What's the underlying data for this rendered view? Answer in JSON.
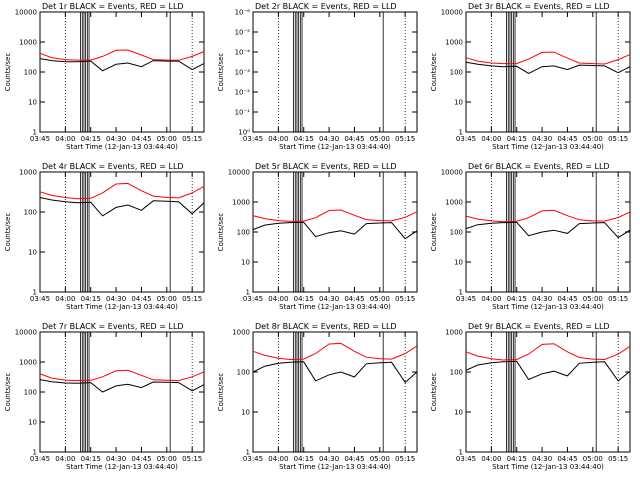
{
  "colors": {
    "events": "#000000",
    "lld": "#ff0000",
    "background": "#ffffff",
    "frame": "#000000"
  },
  "chart_data": [
    {
      "type": "line",
      "title": "Det 1r BLACK = Events, RED = LLD",
      "xlabel": "Start Time (12-Jan-13 03:44:40)",
      "ylabel": "Counts/sec",
      "xlim": [
        "03:45",
        "05:22"
      ],
      "ylim": [
        1,
        10000
      ],
      "yscale": "log",
      "grid": false,
      "legend": "none",
      "x_ticks": [
        "03:45",
        "04:00",
        "04:15",
        "04:30",
        "04:45",
        "05:00",
        "05:15"
      ],
      "y_ticks": [
        "1",
        "10",
        "100",
        "1000",
        "10000"
      ],
      "dotted_lines": [
        "04:00",
        "05:15"
      ],
      "flag_lines": [
        "04:09",
        "04:10",
        "04:11",
        "04:12",
        "04:13",
        "04:14",
        "05:02"
      ],
      "series": [
        {
          "color": "#ff0000",
          "x": [
            "03:45",
            "03:52",
            "04:00",
            "04:07",
            "04:15",
            "04:22",
            "04:30",
            "04:37",
            "04:45",
            "04:52",
            "05:00",
            "05:07",
            "05:15",
            "05:22"
          ],
          "values": [
            420,
            300,
            260,
            250,
            250,
            330,
            530,
            540,
            370,
            260,
            250,
            245,
            330,
            480
          ]
        },
        {
          "color": "#000000",
          "x": [
            "03:45",
            "03:52",
            "04:00",
            "04:07",
            "04:15",
            "04:22",
            "04:30",
            "04:37",
            "04:45",
            "04:52",
            "05:00",
            "05:07",
            "05:15",
            "05:22"
          ],
          "values": [
            280,
            240,
            220,
            220,
            230,
            110,
            180,
            200,
            150,
            240,
            230,
            230,
            120,
            190
          ]
        }
      ]
    },
    {
      "type": "line",
      "title": "Det 2r BLACK = Events, RED = LLD",
      "xlabel": "Start Time (12-Jan-13 03:44:40)",
      "ylabel": "Counts/sec",
      "xlim": [
        "03:45",
        "05:22"
      ],
      "ylim": [
        1,
        1e-06
      ],
      "yscale": "log",
      "grid": false,
      "legend": "none",
      "x_ticks": [
        "03:45",
        "04:00",
        "04:15",
        "04:30",
        "04:45",
        "05:00",
        "05:15"
      ],
      "y_ticks": [
        "10⁰",
        "10⁻¹",
        "10⁻²",
        "10⁻³",
        "10⁻⁴",
        "10⁻⁵",
        "10⁻⁶"
      ],
      "dotted_lines": [
        "04:00",
        "05:15"
      ],
      "flag_lines": [
        "04:09",
        "04:10",
        "04:11",
        "04:12",
        "04:13",
        "04:14",
        "05:02"
      ],
      "series": []
    },
    {
      "type": "line",
      "title": "Det 3r BLACK = Events, RED = LLD",
      "xlabel": "Start Time (12-Jan-13 03:44:40)",
      "ylabel": "Counts/sec",
      "xlim": [
        "03:45",
        "05:22"
      ],
      "ylim": [
        1,
        10000
      ],
      "yscale": "log",
      "grid": false,
      "legend": "none",
      "x_ticks": [
        "03:45",
        "04:00",
        "04:15",
        "04:30",
        "04:45",
        "05:00",
        "05:15"
      ],
      "y_ticks": [
        "1",
        "10",
        "100",
        "1000",
        "10000"
      ],
      "dotted_lines": [
        "04:00",
        "05:15"
      ],
      "flag_lines": [
        "04:09",
        "04:10",
        "04:11",
        "04:12",
        "04:13",
        "04:14",
        "05:02"
      ],
      "series": [
        {
          "color": "#ff0000",
          "x": [
            "03:45",
            "03:52",
            "04:00",
            "04:07",
            "04:15",
            "04:22",
            "04:30",
            "04:37",
            "04:45",
            "04:52",
            "05:00",
            "05:07",
            "05:15",
            "05:22"
          ],
          "values": [
            300,
            230,
            200,
            190,
            190,
            270,
            450,
            460,
            290,
            200,
            190,
            185,
            260,
            380
          ]
        },
        {
          "color": "#000000",
          "x": [
            "03:45",
            "03:52",
            "04:00",
            "04:07",
            "04:15",
            "04:22",
            "04:30",
            "04:37",
            "04:45",
            "04:52",
            "05:00",
            "05:07",
            "05:15",
            "05:22"
          ],
          "values": [
            210,
            180,
            160,
            150,
            155,
            90,
            150,
            160,
            120,
            170,
            165,
            160,
            95,
            150
          ]
        }
      ]
    },
    {
      "type": "line",
      "title": "Det 4r BLACK = Events, RED = LLD",
      "xlabel": "Start Time (12-Jan-13 03:44:40)",
      "ylabel": "Counts/sec",
      "xlim": [
        "03:45",
        "05:22"
      ],
      "ylim": [
        1,
        1000
      ],
      "yscale": "log",
      "grid": false,
      "legend": "none",
      "x_ticks": [
        "03:45",
        "04:00",
        "04:15",
        "04:30",
        "04:45",
        "05:00",
        "05:15"
      ],
      "y_ticks": [
        "1",
        "10",
        "100",
        "1000"
      ],
      "dotted_lines": [
        "04:00",
        "05:15"
      ],
      "flag_lines": [
        "04:09",
        "04:10",
        "04:11",
        "04:12",
        "04:13",
        "04:14",
        "05:02"
      ],
      "series": [
        {
          "color": "#ff0000",
          "x": [
            "03:45",
            "03:52",
            "04:00",
            "04:07",
            "04:15",
            "04:22",
            "04:30",
            "04:37",
            "04:45",
            "04:52",
            "05:00",
            "05:07",
            "05:15",
            "05:22"
          ],
          "values": [
            320,
            260,
            230,
            215,
            220,
            300,
            500,
            520,
            340,
            250,
            230,
            225,
            300,
            440
          ]
        },
        {
          "color": "#000000",
          "x": [
            "03:45",
            "03:52",
            "04:00",
            "04:07",
            "04:15",
            "04:22",
            "04:30",
            "04:37",
            "04:45",
            "04:52",
            "05:00",
            "05:07",
            "05:15",
            "05:22"
          ],
          "values": [
            230,
            200,
            180,
            170,
            175,
            80,
            130,
            150,
            110,
            190,
            185,
            180,
            90,
            170
          ]
        }
      ]
    },
    {
      "type": "line",
      "title": "Det 5r BLACK = Events, RED = LLD",
      "xlabel": "Start Time (12-Jan-13 03:44:40)",
      "ylabel": "Counts/sec",
      "xlim": [
        "03:45",
        "05:22"
      ],
      "ylim": [
        1,
        10000
      ],
      "yscale": "log",
      "grid": false,
      "legend": "none",
      "x_ticks": [
        "03:45",
        "04:00",
        "04:15",
        "04:30",
        "04:45",
        "05:00",
        "05:15"
      ],
      "y_ticks": [
        "1",
        "10",
        "100",
        "1000",
        "10000"
      ],
      "dotted_lines": [
        "04:00",
        "05:15"
      ],
      "flag_lines": [
        "04:09",
        "04:10",
        "04:11",
        "04:12",
        "04:13",
        "04:14",
        "05:02"
      ],
      "series": [
        {
          "color": "#ff0000",
          "x": [
            "03:45",
            "03:52",
            "04:00",
            "04:07",
            "04:15",
            "04:22",
            "04:30",
            "04:37",
            "04:45",
            "04:52",
            "05:00",
            "05:07",
            "05:15",
            "05:22"
          ],
          "values": [
            350,
            280,
            240,
            225,
            230,
            300,
            520,
            540,
            360,
            260,
            240,
            235,
            310,
            470
          ]
        },
        {
          "color": "#000000",
          "x": [
            "03:45",
            "03:52",
            "04:00",
            "04:07",
            "04:15",
            "04:22",
            "04:30",
            "04:37",
            "04:45",
            "04:52",
            "05:00",
            "05:07",
            "05:15",
            "05:22"
          ],
          "values": [
            120,
            170,
            195,
            205,
            210,
            70,
            95,
            110,
            85,
            190,
            200,
            205,
            60,
            110
          ]
        }
      ]
    },
    {
      "type": "line",
      "title": "Det 6r BLACK = Events, RED = LLD",
      "xlabel": "Start Time (12-Jan-13 03:44:40)",
      "ylabel": "Counts/sec",
      "xlim": [
        "03:45",
        "05:22"
      ],
      "ylim": [
        1,
        10000
      ],
      "yscale": "log",
      "grid": false,
      "legend": "none",
      "x_ticks": [
        "03:45",
        "04:00",
        "04:15",
        "04:30",
        "04:45",
        "05:00",
        "05:15"
      ],
      "y_ticks": [
        "1",
        "10",
        "100",
        "1000",
        "10000"
      ],
      "dotted_lines": [
        "04:00",
        "05:15"
      ],
      "flag_lines": [
        "04:09",
        "04:10",
        "04:11",
        "04:12",
        "04:13",
        "04:14",
        "05:02"
      ],
      "series": [
        {
          "color": "#ff0000",
          "x": [
            "03:45",
            "03:52",
            "04:00",
            "04:07",
            "04:15",
            "04:22",
            "04:30",
            "04:37",
            "04:45",
            "04:52",
            "05:00",
            "05:07",
            "05:15",
            "05:22"
          ],
          "values": [
            340,
            270,
            235,
            220,
            225,
            300,
            510,
            530,
            350,
            255,
            235,
            230,
            305,
            460
          ]
        },
        {
          "color": "#000000",
          "x": [
            "03:45",
            "03:52",
            "04:00",
            "04:07",
            "04:15",
            "04:22",
            "04:30",
            "04:37",
            "04:45",
            "04:52",
            "05:00",
            "05:07",
            "05:15",
            "05:22"
          ],
          "values": [
            130,
            175,
            195,
            205,
            210,
            75,
            100,
            115,
            90,
            190,
            200,
            205,
            65,
            115
          ]
        }
      ]
    },
    {
      "type": "line",
      "title": "Det 7r BLACK = Events, RED = LLD",
      "xlabel": "Start Time (12-Jan-13 03:44:40)",
      "ylabel": "Counts/sec",
      "xlim": [
        "03:45",
        "05:22"
      ],
      "ylim": [
        1,
        10000
      ],
      "yscale": "log",
      "grid": false,
      "legend": "none",
      "x_ticks": [
        "03:45",
        "04:00",
        "04:15",
        "04:30",
        "04:45",
        "05:00",
        "05:15"
      ],
      "y_ticks": [
        "1",
        "10",
        "100",
        "1000",
        "10000"
      ],
      "dotted_lines": [
        "04:00",
        "05:15"
      ],
      "flag_lines": [
        "04:09",
        "04:10",
        "04:11",
        "04:12",
        "04:13",
        "04:14",
        "05:02"
      ],
      "series": [
        {
          "color": "#ff0000",
          "x": [
            "03:45",
            "03:52",
            "04:00",
            "04:07",
            "04:15",
            "04:22",
            "04:30",
            "04:37",
            "04:45",
            "04:52",
            "05:00",
            "05:07",
            "05:15",
            "05:22"
          ],
          "values": [
            400,
            290,
            250,
            240,
            245,
            320,
            510,
            530,
            360,
            255,
            245,
            240,
            320,
            470
          ]
        },
        {
          "color": "#000000",
          "x": [
            "03:45",
            "03:52",
            "04:00",
            "04:07",
            "04:15",
            "04:22",
            "04:30",
            "04:37",
            "04:45",
            "04:52",
            "05:00",
            "05:07",
            "05:15",
            "05:22"
          ],
          "values": [
            260,
            220,
            200,
            195,
            205,
            100,
            160,
            180,
            140,
            215,
            210,
            205,
            110,
            175
          ]
        }
      ]
    },
    {
      "type": "line",
      "title": "Det 8r BLACK = Events, RED = LLD",
      "xlabel": "Start Time (12-Jan-13 03:44:40)",
      "ylabel": "Counts/sec",
      "xlim": [
        "03:45",
        "05:22"
      ],
      "ylim": [
        1,
        1000
      ],
      "yscale": "log",
      "grid": false,
      "legend": "none",
      "x_ticks": [
        "03:45",
        "04:00",
        "04:15",
        "04:30",
        "04:45",
        "05:00",
        "05:15"
      ],
      "y_ticks": [
        "1",
        "10",
        "100",
        "1000"
      ],
      "dotted_lines": [
        "04:00",
        "05:15"
      ],
      "flag_lines": [
        "04:09",
        "04:10",
        "04:11",
        "04:12",
        "04:13",
        "04:14",
        "05:02"
      ],
      "series": [
        {
          "color": "#ff0000",
          "x": [
            "03:45",
            "03:52",
            "04:00",
            "04:07",
            "04:15",
            "04:22",
            "04:30",
            "04:37",
            "04:45",
            "04:52",
            "05:00",
            "05:07",
            "05:15",
            "05:22"
          ],
          "values": [
            330,
            260,
            220,
            205,
            210,
            290,
            500,
            520,
            330,
            235,
            215,
            210,
            290,
            450
          ]
        },
        {
          "color": "#000000",
          "x": [
            "03:45",
            "03:52",
            "04:00",
            "04:07",
            "04:15",
            "04:22",
            "04:30",
            "04:37",
            "04:45",
            "04:52",
            "05:00",
            "05:07",
            "05:15",
            "05:22"
          ],
          "values": [
            100,
            140,
            165,
            175,
            180,
            60,
            85,
            100,
            75,
            160,
            170,
            175,
            55,
            100
          ]
        }
      ]
    },
    {
      "type": "line",
      "title": "Det 9r BLACK = Events, RED = LLD",
      "xlabel": "Start Time (12-Jan-13 03:44:40)",
      "ylabel": "Counts/sec",
      "xlim": [
        "03:45",
        "05:22"
      ],
      "ylim": [
        1,
        1000
      ],
      "yscale": "log",
      "grid": false,
      "legend": "none",
      "x_ticks": [
        "03:45",
        "04:00",
        "04:15",
        "04:30",
        "04:45",
        "05:00",
        "05:15"
      ],
      "y_ticks": [
        "1",
        "10",
        "100",
        "1000"
      ],
      "dotted_lines": [
        "04:00",
        "05:15"
      ],
      "flag_lines": [
        "04:09",
        "04:10",
        "04:11",
        "04:12",
        "04:13",
        "04:14",
        "05:02"
      ],
      "series": [
        {
          "color": "#ff0000",
          "x": [
            "03:45",
            "03:52",
            "04:00",
            "04:07",
            "04:15",
            "04:22",
            "04:30",
            "04:37",
            "04:45",
            "04:52",
            "05:00",
            "05:07",
            "05:15",
            "05:22"
          ],
          "values": [
            320,
            250,
            215,
            200,
            205,
            280,
            490,
            510,
            320,
            230,
            210,
            205,
            280,
            440
          ]
        },
        {
          "color": "#000000",
          "x": [
            "03:45",
            "03:52",
            "04:00",
            "04:07",
            "04:15",
            "04:22",
            "04:30",
            "04:37",
            "04:45",
            "04:52",
            "05:00",
            "05:07",
            "05:15",
            "05:22"
          ],
          "values": [
            110,
            150,
            170,
            180,
            185,
            65,
            90,
            105,
            80,
            165,
            175,
            180,
            60,
            105
          ]
        }
      ]
    }
  ]
}
